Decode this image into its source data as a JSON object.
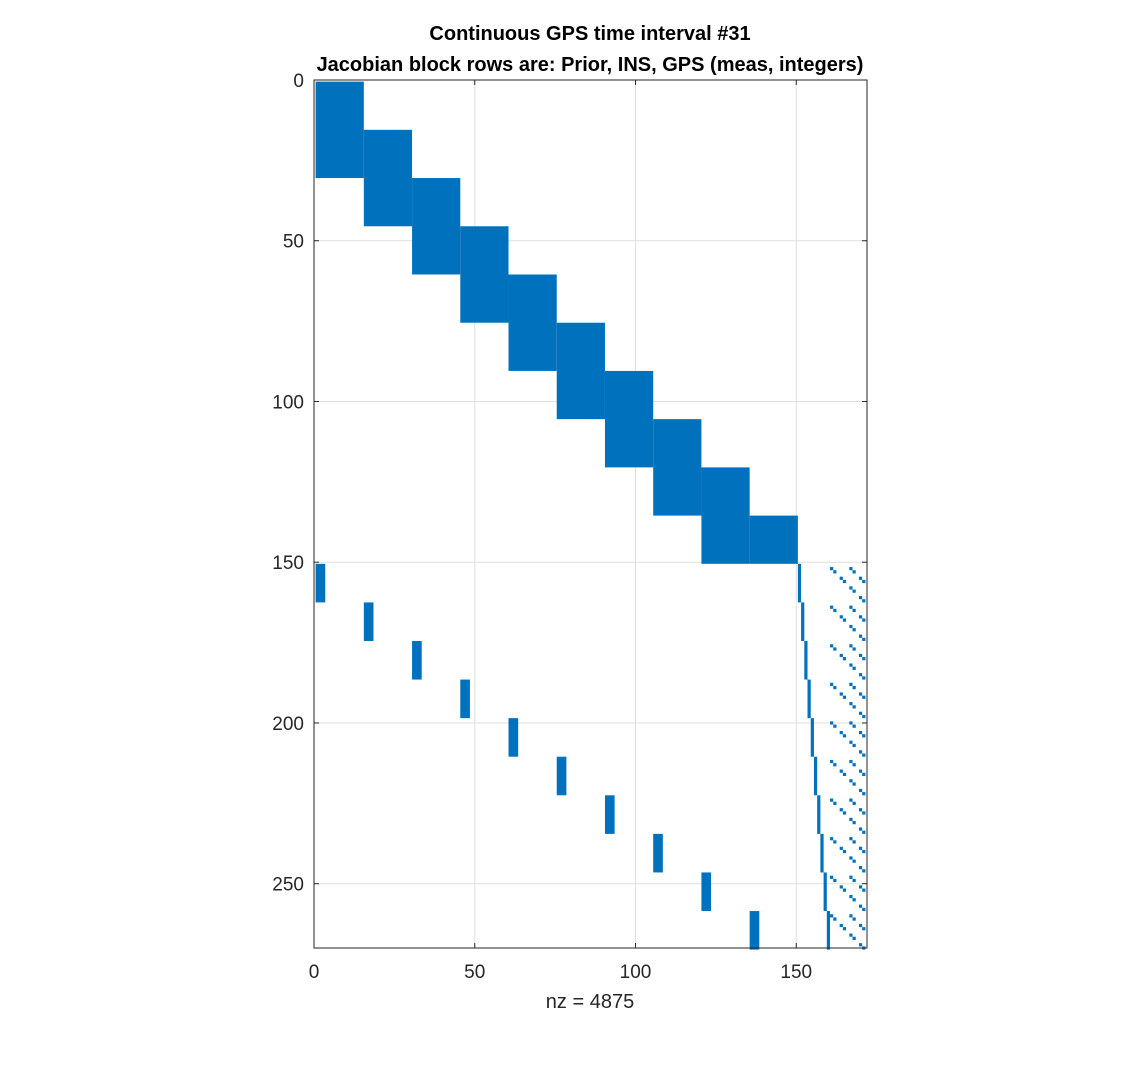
{
  "chart_data": {
    "type": "spy",
    "title_line1": "Continuous GPS time interval #31",
    "title_line2": "Jacobian block rows are: Prior, INS, GPS (meas, integers)",
    "xlabel": "nz = 4875",
    "ylabel": "",
    "xlim": [
      0,
      172
    ],
    "ylim": [
      0,
      270
    ],
    "y_reversed": true,
    "grid": true,
    "marker_color": "#0072BD",
    "xticks": [
      0,
      50,
      100,
      150
    ],
    "yticks": [
      0,
      50,
      100,
      150,
      200,
      250
    ],
    "nnz": 4875,
    "blocks": [
      {
        "row_start": 1,
        "row_end": 30,
        "col_start": 1,
        "col_end": 15
      },
      {
        "row_start": 16,
        "row_end": 45,
        "col_start": 16,
        "col_end": 30
      },
      {
        "row_start": 31,
        "row_end": 60,
        "col_start": 31,
        "col_end": 45
      },
      {
        "row_start": 46,
        "row_end": 75,
        "col_start": 46,
        "col_end": 60
      },
      {
        "row_start": 61,
        "row_end": 90,
        "col_start": 61,
        "col_end": 75
      },
      {
        "row_start": 76,
        "row_end": 105,
        "col_start": 76,
        "col_end": 90
      },
      {
        "row_start": 91,
        "row_end": 120,
        "col_start": 91,
        "col_end": 105
      },
      {
        "row_start": 106,
        "row_end": 135,
        "col_start": 106,
        "col_end": 120
      },
      {
        "row_start": 121,
        "row_end": 150,
        "col_start": 121,
        "col_end": 135
      },
      {
        "row_start": 136,
        "row_end": 150,
        "col_start": 136,
        "col_end": 150
      },
      {
        "row_start": 151,
        "row_end": 162,
        "col_start": 1,
        "col_end": 3
      },
      {
        "row_start": 163,
        "row_end": 174,
        "col_start": 16,
        "col_end": 18
      },
      {
        "row_start": 175,
        "row_end": 186,
        "col_start": 31,
        "col_end": 33
      },
      {
        "row_start": 187,
        "row_end": 198,
        "col_start": 46,
        "col_end": 48
      },
      {
        "row_start": 199,
        "row_end": 210,
        "col_start": 61,
        "col_end": 63
      },
      {
        "row_start": 211,
        "row_end": 222,
        "col_start": 76,
        "col_end": 78
      },
      {
        "row_start": 223,
        "row_end": 234,
        "col_start": 91,
        "col_end": 93
      },
      {
        "row_start": 235,
        "row_end": 246,
        "col_start": 106,
        "col_end": 108
      },
      {
        "row_start": 247,
        "row_end": 258,
        "col_start": 121,
        "col_end": 123
      },
      {
        "row_start": 259,
        "row_end": 270,
        "col_start": 136,
        "col_end": 138
      }
    ],
    "clock_staircase": {
      "row_start": 151,
      "row_end": 270,
      "rows_per_step": 12,
      "col_start": 151,
      "col_step": 1,
      "width": 1
    },
    "integer_diagonals": {
      "row_start": 152,
      "row_end": 270,
      "rows_per_block": 12,
      "first_col_in_block": 161,
      "col_step": 1,
      "offsets": [
        0,
        6,
        12
      ],
      "dot_rows": 2,
      "gap_rows": 1,
      "col_max": 172
    }
  }
}
